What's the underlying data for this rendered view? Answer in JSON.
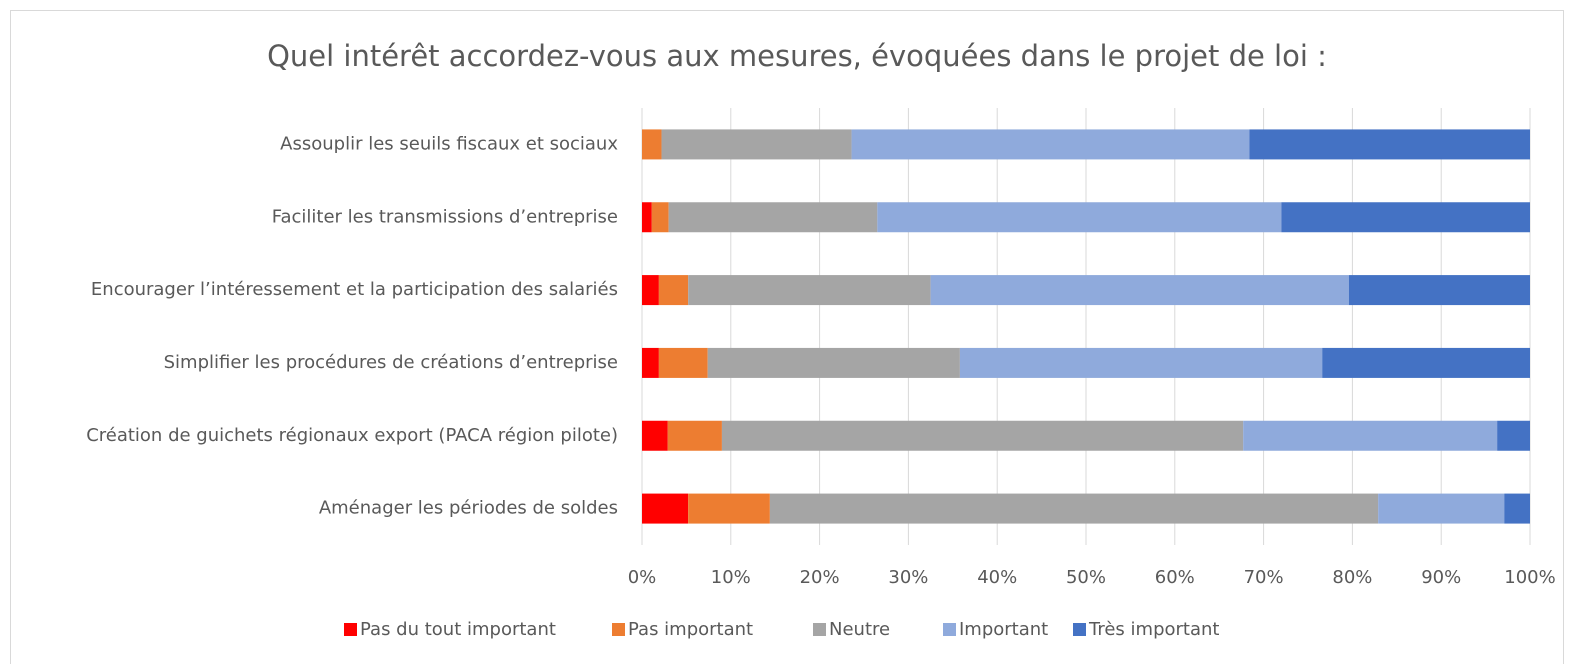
{
  "chart_data": {
    "type": "stacked_barh",
    "title": "Quel intérêt accordez-vous aux mesures, évoquées dans le projet de loi :",
    "categories": [
      "Assouplir les seuils fiscaux et sociaux",
      "Faciliter les transmissions d’entreprise",
      "Encourager l’intéressement et la participation des salariés",
      "Simplifier les procédures de créations d’entreprise",
      "Création de guichets régionaux export (PACA région pilote)",
      "Aménager les périodes de soldes"
    ],
    "series": [
      {
        "name": "Pas du tout important",
        "color": "#ff0000",
        "values": [
          0,
          1.1,
          1.9,
          1.9,
          2.9,
          5.2
        ]
      },
      {
        "name": "Pas important",
        "color": "#ed7d31",
        "values": [
          2.2,
          1.9,
          3.3,
          5.5,
          6.1,
          9.2
        ]
      },
      {
        "name": "Neutre",
        "color": "#a5a5a5",
        "values": [
          21.4,
          23.5,
          27.3,
          28.4,
          58.7,
          68.5
        ]
      },
      {
        "name": "Important",
        "color": "#8faadc",
        "values": [
          44.8,
          45.5,
          47.1,
          40.8,
          28.6,
          14.2
        ]
      },
      {
        "name": "Très important",
        "color": "#4472c4",
        "values": [
          31.6,
          28,
          20.4,
          23.4,
          3.7,
          2.9
        ]
      }
    ],
    "xlim": [
      0,
      100
    ],
    "xticks": [
      {
        "value": 0,
        "label": "0%"
      },
      {
        "value": 10,
        "label": "10%"
      },
      {
        "value": 20,
        "label": "20%"
      },
      {
        "value": 30,
        "label": "30%"
      },
      {
        "value": 40,
        "label": "40%"
      },
      {
        "value": 50,
        "label": "50%"
      },
      {
        "value": 60,
        "label": "60%"
      },
      {
        "value": 70,
        "label": "70%"
      },
      {
        "value": 80,
        "label": "80%"
      },
      {
        "value": 90,
        "label": "90%"
      },
      {
        "value": 100,
        "label": "100%"
      }
    ],
    "grid": true
  }
}
